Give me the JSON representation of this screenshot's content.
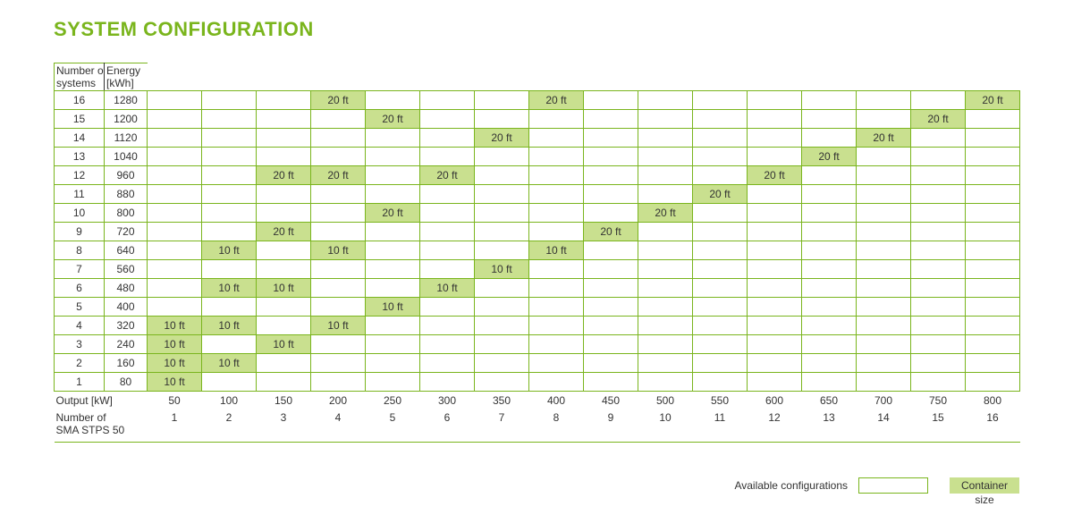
{
  "title": "SYSTEM CONFIGURATION",
  "headers": {
    "col1": "Number of\nsystems",
    "col2": "Energy\n[kWh]"
  },
  "footer": {
    "output_label": "Output [kW]",
    "stps_label": "Number of\nSMA STPS 50"
  },
  "legend": {
    "avail": "Available configurations",
    "size": "Container size"
  },
  "columns": {
    "output": [
      50,
      100,
      150,
      200,
      250,
      300,
      350,
      400,
      450,
      500,
      550,
      600,
      650,
      700,
      750,
      800
    ],
    "stps": [
      1,
      2,
      3,
      4,
      5,
      6,
      7,
      8,
      9,
      10,
      11,
      12,
      13,
      14,
      15,
      16
    ]
  },
  "rows": [
    {
      "n": 16,
      "e": 1280,
      "cells": {
        "4": "20 ft",
        "8": "20 ft",
        "16": "20 ft"
      }
    },
    {
      "n": 15,
      "e": 1200,
      "cells": {
        "5": "20 ft",
        "15": "20 ft"
      }
    },
    {
      "n": 14,
      "e": 1120,
      "cells": {
        "7": "20 ft",
        "14": "20 ft"
      }
    },
    {
      "n": 13,
      "e": 1040,
      "cells": {
        "13": "20 ft"
      }
    },
    {
      "n": 12,
      "e": 960,
      "cells": {
        "3": "20 ft",
        "4": "20 ft",
        "6": "20 ft",
        "12": "20 ft"
      }
    },
    {
      "n": 11,
      "e": 880,
      "cells": {
        "11": "20 ft"
      }
    },
    {
      "n": 10,
      "e": 800,
      "cells": {
        "5": "20 ft",
        "10": "20 ft"
      }
    },
    {
      "n": 9,
      "e": 720,
      "cells": {
        "3": "20 ft",
        "9": "20 ft"
      }
    },
    {
      "n": 8,
      "e": 640,
      "cells": {
        "2": "10 ft",
        "4": "10 ft",
        "8": "10 ft"
      }
    },
    {
      "n": 7,
      "e": 560,
      "cells": {
        "7": "10 ft"
      }
    },
    {
      "n": 6,
      "e": 480,
      "cells": {
        "2": "10 ft",
        "3": "10 ft",
        "6": "10 ft"
      }
    },
    {
      "n": 5,
      "e": 400,
      "cells": {
        "5": "10 ft"
      }
    },
    {
      "n": 4,
      "e": 320,
      "cells": {
        "1": "10 ft",
        "2": "10 ft",
        "4": "10 ft"
      }
    },
    {
      "n": 3,
      "e": 240,
      "cells": {
        "1": "10 ft",
        "3": "10 ft"
      }
    },
    {
      "n": 2,
      "e": 160,
      "cells": {
        "1": "10 ft",
        "2": "10 ft"
      }
    },
    {
      "n": 1,
      "e": 80,
      "cells": {
        "1": "10 ft"
      }
    }
  ],
  "style": {
    "brand_green": "#7ab51d",
    "cell_fill": "#c9e08f",
    "text": "#333333",
    "bg": "#ffffff",
    "title_fontsize_pt": 16,
    "cell_fontsize_pt": 9,
    "n_data_cols": 16
  }
}
